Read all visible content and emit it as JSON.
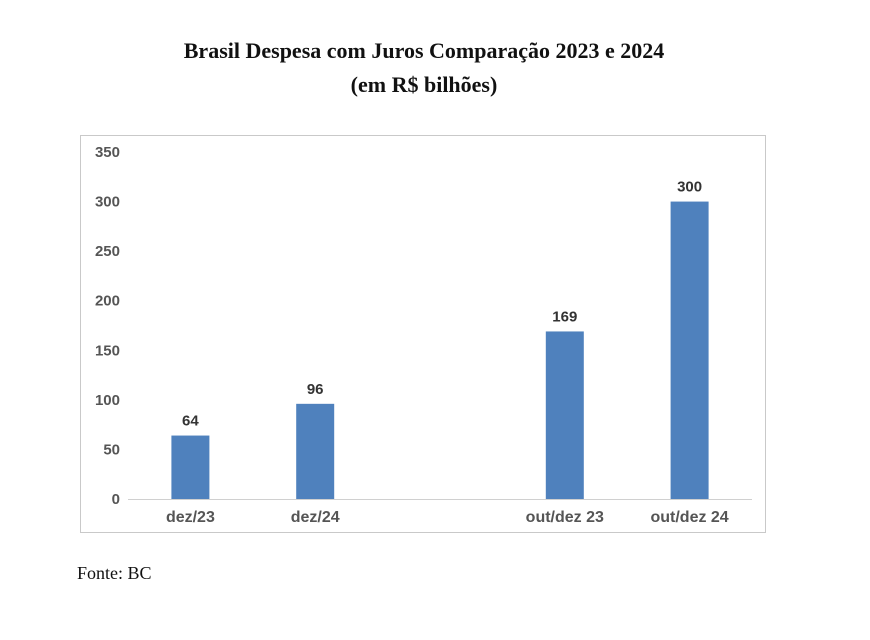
{
  "chart_data": {
    "type": "bar",
    "title": "Brasil Despesa com Juros Comparação 2023 e 2024",
    "subtitle": "(em R$ bilhões)",
    "categories": [
      "dez/23",
      "dez/24",
      "",
      "out/dez 23",
      "out/dez 24"
    ],
    "values": [
      64,
      96,
      null,
      169,
      300
    ],
    "data_labels": [
      "64",
      "96",
      "",
      "169",
      "300"
    ],
    "y_ticks": [
      "0",
      "50",
      "100",
      "150",
      "200",
      "250",
      "300",
      "350"
    ],
    "ylim": [
      0,
      350
    ],
    "xlabel": "",
    "ylabel": "",
    "bar_color": "#4f81bd",
    "grid": false,
    "legend": "none"
  },
  "source": "Fonte: BC"
}
